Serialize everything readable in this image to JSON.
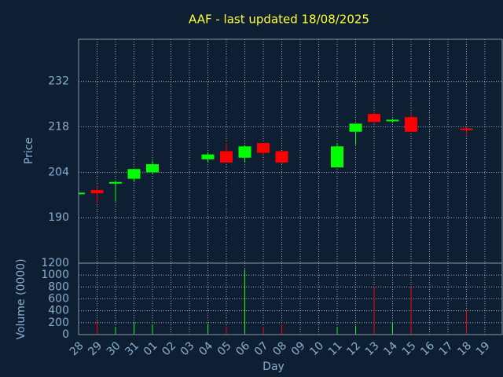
{
  "chart_data": [
    {
      "type": "candlestick",
      "title": "AAF - last updated 18/08/2025",
      "ylabel": "Price",
      "categories": [
        "28",
        "29",
        "30",
        "31",
        "01",
        "02",
        "03",
        "04",
        "05",
        "06",
        "07",
        "08",
        "09",
        "10",
        "11",
        "12",
        "13",
        "14",
        "15",
        "16",
        "17",
        "18",
        "19"
      ],
      "open": [
        197.5,
        198.5,
        200.5,
        202,
        204,
        null,
        null,
        208,
        210.5,
        208.5,
        213,
        210.5,
        null,
        null,
        205.5,
        216.5,
        222,
        219.8,
        221,
        null,
        null,
        217.5,
        null
      ],
      "high": [
        197.8,
        200,
        201.5,
        205,
        207.5,
        null,
        null,
        210,
        213,
        212,
        213,
        210.5,
        null,
        null,
        213,
        219,
        222.5,
        220.5,
        222.5,
        null,
        null,
        218,
        null
      ],
      "low": [
        197.3,
        194.5,
        195,
        201,
        203.5,
        null,
        null,
        207,
        207,
        207,
        209,
        206.5,
        null,
        null,
        205.5,
        212.5,
        219,
        219.3,
        216.5,
        null,
        null,
        215.5,
        null
      ],
      "close": [
        197.7,
        197.5,
        201,
        205,
        206.5,
        null,
        null,
        209.5,
        207,
        212,
        210,
        207,
        null,
        null,
        212,
        219,
        219.5,
        220.2,
        216.5,
        null,
        null,
        217,
        null
      ],
      "up_color": "#00ff00",
      "down_color": "#ff0000",
      "ylim": [
        176,
        245
      ],
      "yticks": [
        190,
        204,
        218,
        232
      ],
      "grid": true
    },
    {
      "type": "bar",
      "ylabel": "Volume (0000)",
      "xlabel": "Day",
      "categories": [
        "28",
        "29",
        "30",
        "31",
        "01",
        "02",
        "03",
        "04",
        "05",
        "06",
        "07",
        "08",
        "09",
        "10",
        "11",
        "12",
        "13",
        "14",
        "15",
        "16",
        "17",
        "18",
        "19"
      ],
      "values": [
        null,
        230,
        130,
        200,
        170,
        null,
        null,
        180,
        130,
        1100,
        130,
        170,
        null,
        null,
        130,
        150,
        800,
        200,
        800,
        null,
        null,
        420,
        null
      ],
      "colors": [
        null,
        "#ff0000",
        "#00ff00",
        "#00ff00",
        "#00ff00",
        null,
        null,
        "#00ff00",
        "#ff0000",
        "#00ff00",
        "#ff0000",
        "#ff0000",
        null,
        null,
        "#00ff00",
        "#00ff00",
        "#ff0000",
        "#00ff00",
        "#ff0000",
        null,
        null,
        "#ff0000",
        null
      ],
      "ylim": [
        0,
        1200
      ],
      "yticks": [
        0,
        200,
        400,
        600,
        800,
        1000,
        1200
      ],
      "grid": true
    }
  ]
}
